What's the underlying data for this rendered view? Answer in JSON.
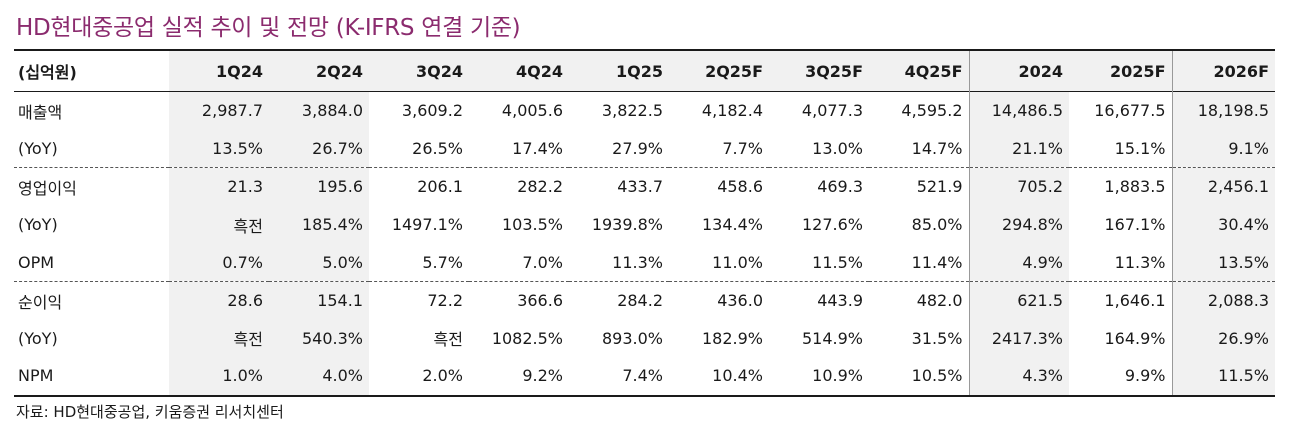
{
  "title": "HD현대중공업 실적 추이 및 전망 (K-IFRS 연결 기준)",
  "unit_label": "(십억원)",
  "columns": [
    "1Q24",
    "2Q24",
    "3Q24",
    "4Q24",
    "1Q25",
    "2Q25F",
    "3Q25F",
    "4Q25F",
    "2024",
    "2025F",
    "2026F"
  ],
  "rows": [
    {
      "label": "매출액",
      "values": [
        "2,987.7",
        "3,884.0",
        "3,609.2",
        "4,005.6",
        "3,822.5",
        "4,182.4",
        "4,077.3",
        "4,595.2",
        "14,486.5",
        "16,677.5",
        "18,198.5"
      ]
    },
    {
      "label": "(YoY)",
      "values": [
        "13.5%",
        "26.7%",
        "26.5%",
        "17.4%",
        "27.9%",
        "7.7%",
        "13.0%",
        "14.7%",
        "21.1%",
        "15.1%",
        "9.1%"
      ]
    },
    {
      "label": "영업이익",
      "values": [
        "21.3",
        "195.6",
        "206.1",
        "282.2",
        "433.7",
        "458.6",
        "469.3",
        "521.9",
        "705.2",
        "1,883.5",
        "2,456.1"
      ]
    },
    {
      "label": "(YoY)",
      "values": [
        "흑전",
        "185.4%",
        "1497.1%",
        "103.5%",
        "1939.8%",
        "134.4%",
        "127.6%",
        "85.0%",
        "294.8%",
        "167.1%",
        "30.4%"
      ]
    },
    {
      "label": "OPM",
      "values": [
        "0.7%",
        "5.0%",
        "5.7%",
        "7.0%",
        "11.3%",
        "11.0%",
        "11.5%",
        "11.4%",
        "4.9%",
        "11.3%",
        "13.5%"
      ]
    },
    {
      "label": "순이익",
      "values": [
        "28.6",
        "154.1",
        "72.2",
        "366.6",
        "284.2",
        "436.0",
        "443.9",
        "482.0",
        "621.5",
        "1,646.1",
        "2,088.3"
      ]
    },
    {
      "label": "(YoY)",
      "values": [
        "흑전",
        "540.3%",
        "흑전",
        "1082.5%",
        "893.0%",
        "182.9%",
        "514.9%",
        "31.5%",
        "2417.3%",
        "164.9%",
        "26.9%"
      ]
    },
    {
      "label": "NPM",
      "values": [
        "1.0%",
        "4.0%",
        "2.0%",
        "9.2%",
        "7.4%",
        "10.4%",
        "10.9%",
        "10.5%",
        "4.3%",
        "9.9%",
        "11.5%"
      ]
    }
  ],
  "source": "자료: HD현대중공업, 키움증권 리서치센터",
  "colors": {
    "title": "#8b2b6e",
    "shade": "#f1f1f1"
  }
}
